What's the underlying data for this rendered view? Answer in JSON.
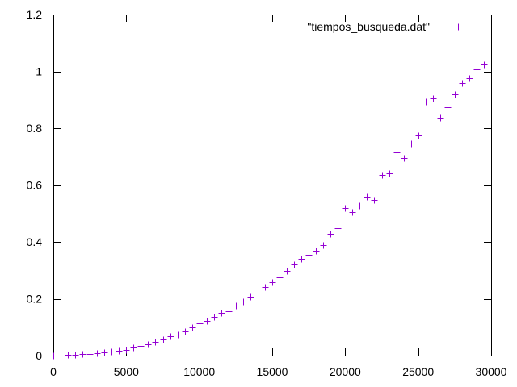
{
  "chart_data": {
    "type": "scatter",
    "series": [
      {
        "name": "\"tiempos_busqueda.dat\"",
        "color": "#9400d3",
        "marker": "plus",
        "x": [
          0,
          500,
          1000,
          1500,
          2000,
          2500,
          3000,
          3500,
          4000,
          4500,
          5000,
          5500,
          6000,
          6500,
          7000,
          7500,
          8000,
          8500,
          9000,
          9500,
          10000,
          10500,
          11000,
          11500,
          12000,
          12500,
          13000,
          13500,
          14000,
          14500,
          15000,
          15500,
          16000,
          16500,
          17000,
          17500,
          18000,
          18500,
          19000,
          19500,
          20000,
          20500,
          21000,
          21500,
          22000,
          22500,
          23000,
          23500,
          24000,
          24500,
          25000,
          25500,
          26000,
          26500,
          27000,
          27500,
          28000,
          28500,
          29000,
          29500
        ],
        "y": [
          0.0,
          0.001,
          0.003,
          0.004,
          0.005,
          0.006,
          0.008,
          0.01,
          0.013,
          0.016,
          0.02,
          0.027,
          0.033,
          0.04,
          0.048,
          0.058,
          0.068,
          0.074,
          0.085,
          0.098,
          0.113,
          0.122,
          0.136,
          0.15,
          0.156,
          0.175,
          0.19,
          0.208,
          0.221,
          0.24,
          0.258,
          0.276,
          0.298,
          0.32,
          0.34,
          0.356,
          0.368,
          0.39,
          0.428,
          0.448,
          0.52,
          0.505,
          0.528,
          0.558,
          0.548,
          0.636,
          0.642,
          0.715,
          0.695,
          0.745,
          0.775,
          0.895,
          0.905,
          0.838,
          0.875,
          0.918,
          0.958,
          0.975,
          1.008,
          1.025
        ]
      }
    ],
    "xlim": [
      0,
      30000
    ],
    "ylim": [
      0,
      1.2
    ],
    "x_ticks": [
      0,
      5000,
      10000,
      15000,
      20000,
      25000,
      30000
    ],
    "y_ticks": [
      0,
      0.2,
      0.4,
      0.6,
      0.8,
      1,
      1.2
    ],
    "x_tick_labels": [
      "0",
      "5000",
      "10000",
      "15000",
      "20000",
      "25000",
      "30000"
    ],
    "y_tick_labels": [
      "0",
      "0.2",
      "0.4",
      "0.6",
      "0.8",
      "1",
      "1.2"
    ],
    "title": "",
    "xlabel": "",
    "ylabel": "",
    "grid": false,
    "legend_position": "top-right"
  }
}
